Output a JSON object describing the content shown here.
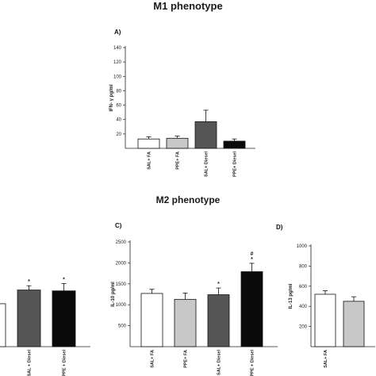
{
  "headings": {
    "m1": "M1 phenotype",
    "m2": "M2 phenotype"
  },
  "chart_data": [
    {
      "id": "A",
      "type": "bar",
      "panel_label": "A)",
      "title": "",
      "ylabel": "IFN- γ pg/ml",
      "ylim": [
        0,
        140
      ],
      "yticks": [
        20,
        40,
        60,
        80,
        100,
        120,
        140
      ],
      "categories": [
        "SAL+ FA",
        "PPE+ FA",
        "SAL+ Diesel",
        "PPE+ Diesel"
      ],
      "values": [
        13,
        14,
        37,
        10
      ],
      "errors": [
        3,
        3,
        16,
        3
      ],
      "colors": [
        "#ffffff",
        "#c8c8c8",
        "#555555",
        "#0a0a0a"
      ],
      "annotations": [
        "",
        "",
        "",
        ""
      ]
    },
    {
      "id": "B",
      "type": "bar",
      "panel_label": "",
      "title": "",
      "ylabel": "",
      "ylim": [
        0,
        2200
      ],
      "yticks": [],
      "categories": [
        "",
        "SAL + Diesel",
        "PPE + Diesel"
      ],
      "values": [
        1000,
        1320,
        1300
      ],
      "errors": [
        0,
        100,
        170
      ],
      "colors": [
        "#ffffff",
        "#555555",
        "#0a0a0a"
      ],
      "annotations": [
        "",
        "*",
        "*"
      ]
    },
    {
      "id": "C",
      "type": "bar",
      "panel_label": "C)",
      "title": "",
      "ylabel": "IL-10 pg/ml",
      "ylim": [
        0,
        2500
      ],
      "yticks": [
        500,
        1000,
        1500,
        2000,
        2500
      ],
      "categories": [
        "SAL+ FA",
        "PPE+ FA",
        "SAL+ Diesel",
        "PPE + Diesel"
      ],
      "values": [
        1270,
        1130,
        1240,
        1790
      ],
      "errors": [
        100,
        150,
        160,
        200
      ],
      "colors": [
        "#ffffff",
        "#c8c8c8",
        "#555555",
        "#0a0a0a"
      ],
      "annotations": [
        "",
        "",
        "*",
        "#\n*"
      ]
    },
    {
      "id": "D",
      "type": "bar",
      "panel_label": "D)",
      "title": "",
      "ylabel": "IL-13 pg/ml",
      "ylim": [
        0,
        1000
      ],
      "yticks": [
        200,
        400,
        600,
        800,
        1000
      ],
      "categories": [
        "SAL+ FA",
        ""
      ],
      "values": [
        520,
        450
      ],
      "errors": [
        35,
        45
      ],
      "colors": [
        "#ffffff",
        "#c8c8c8"
      ],
      "annotations": [
        "",
        ""
      ]
    }
  ]
}
